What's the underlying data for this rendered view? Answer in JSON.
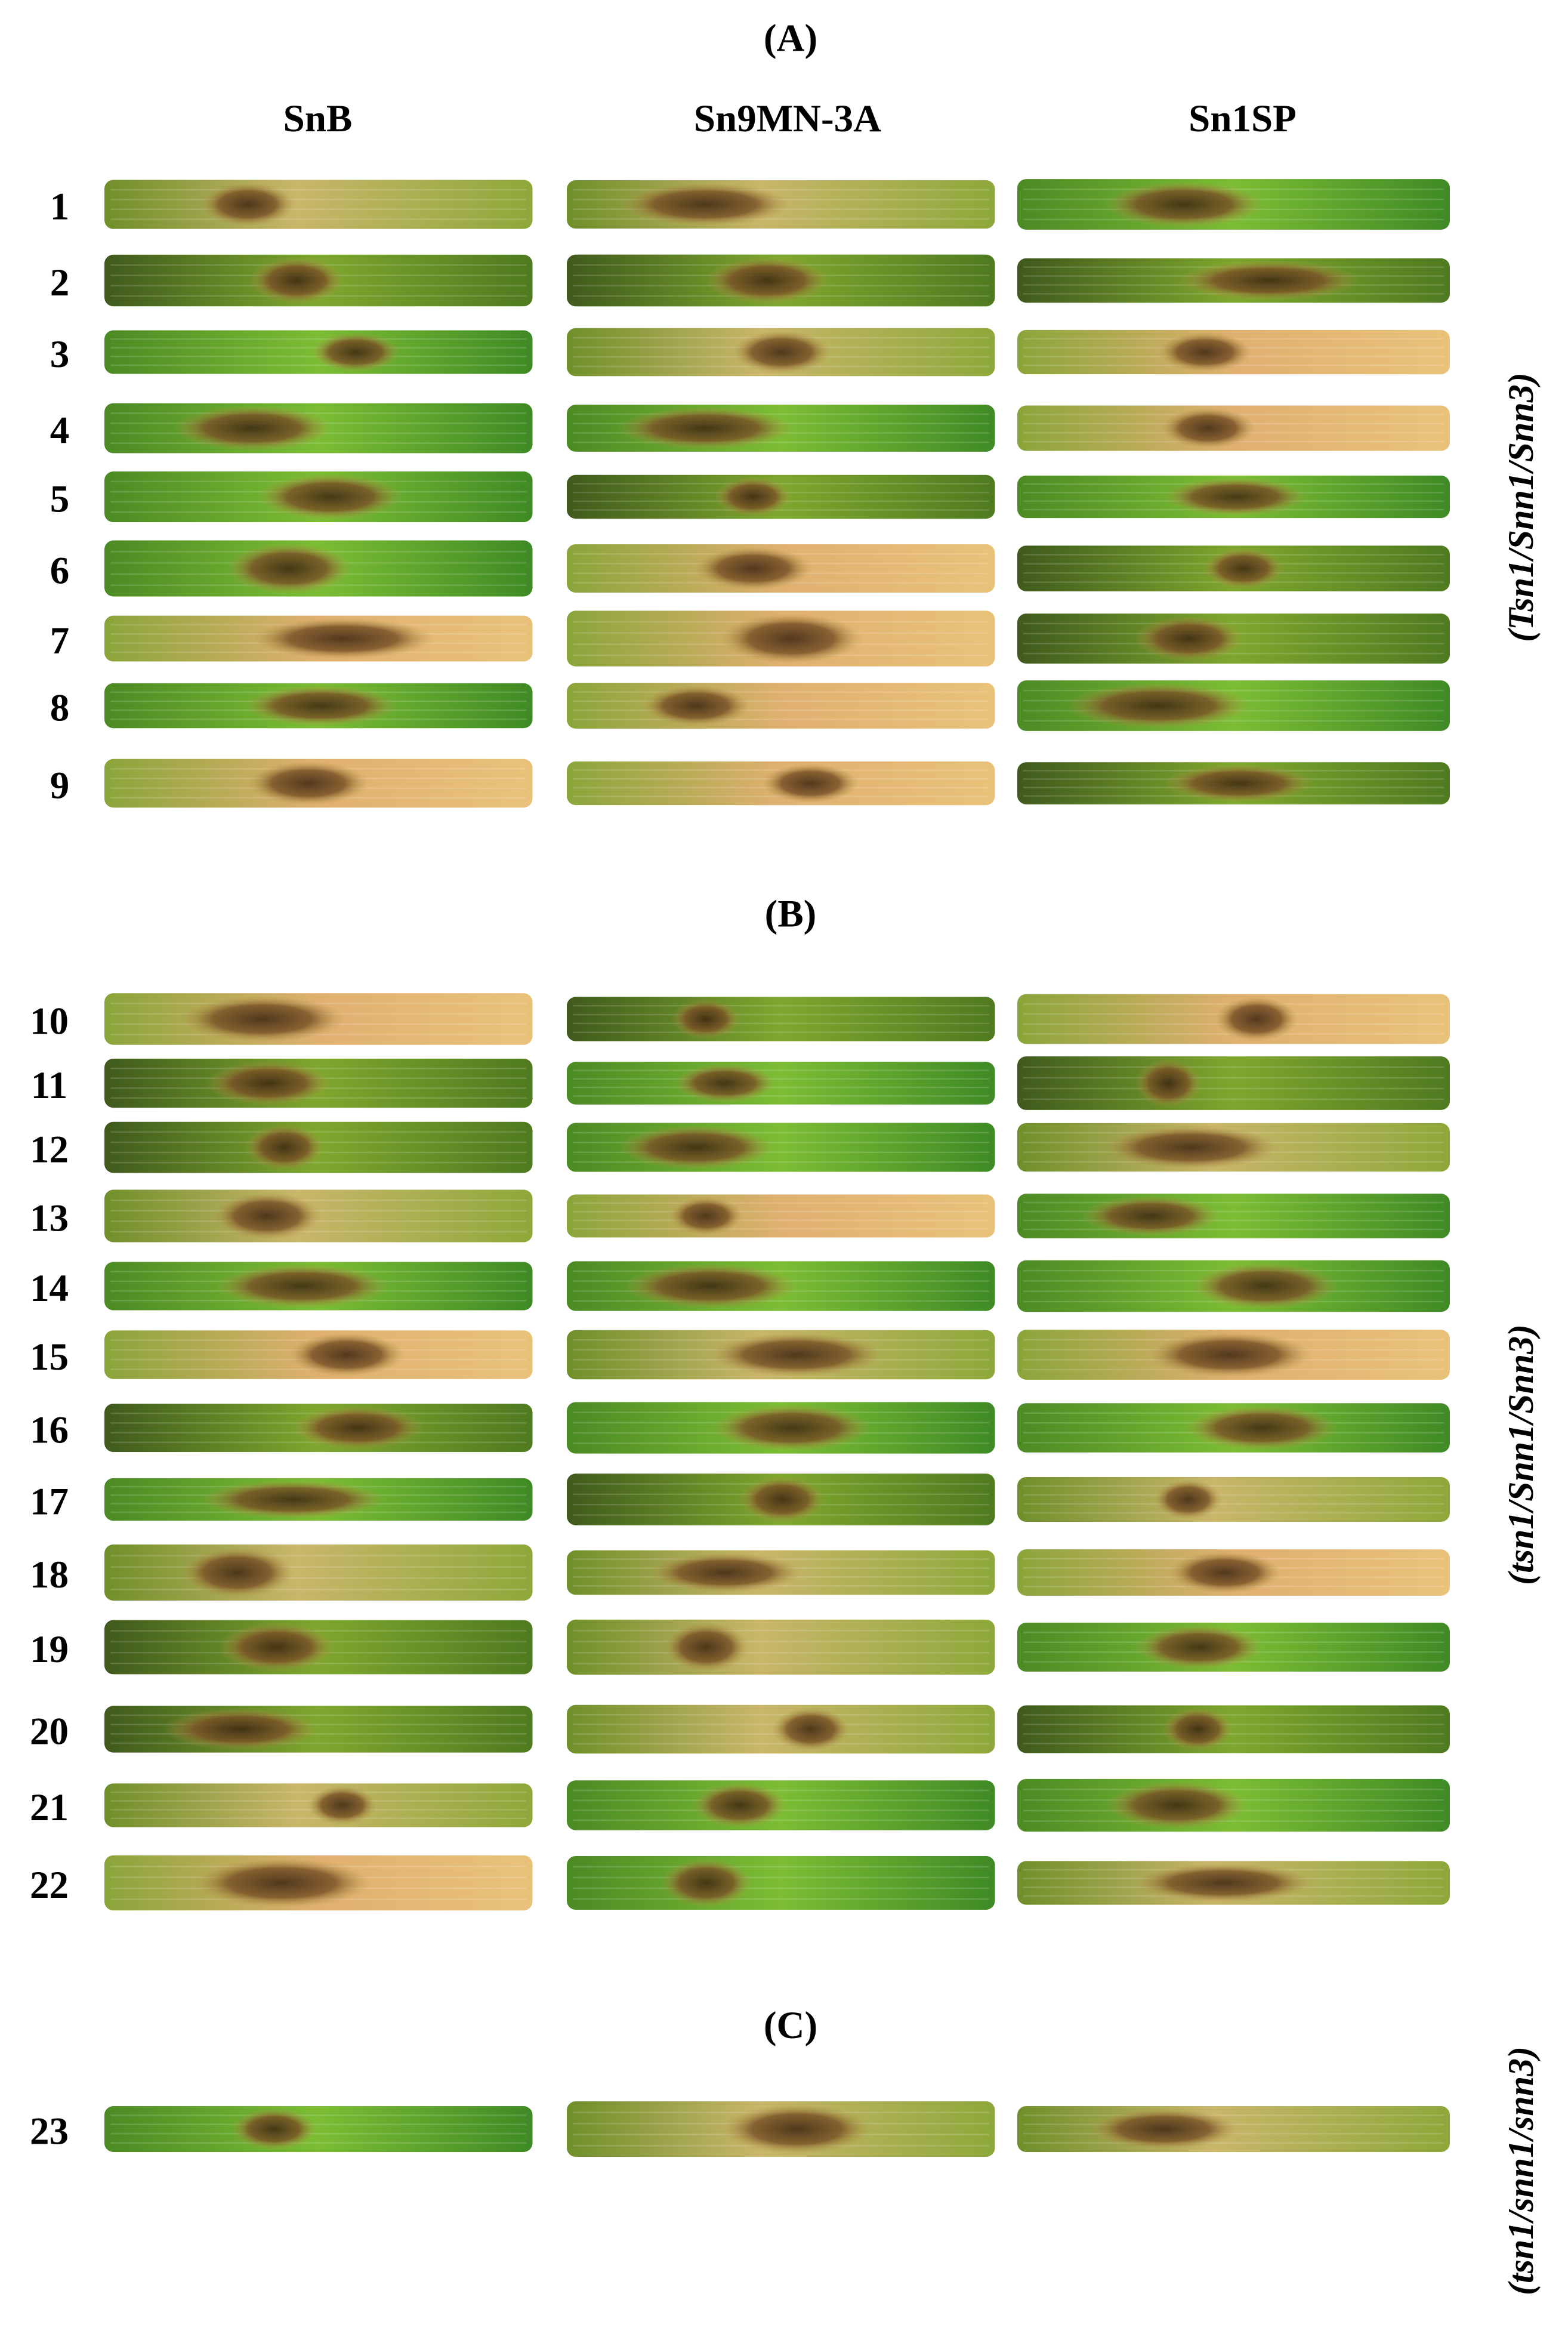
{
  "column_headers": [
    "SnB",
    "Sn9MN-3A",
    "Sn1SP"
  ],
  "panels": [
    {
      "label": "(A)",
      "genotype": "(Tsn1/Snn1/Snn3)",
      "rows": [
        1,
        2,
        3,
        4,
        5,
        6,
        7,
        8,
        9
      ]
    },
    {
      "label": "(B)",
      "genotype": "(tsn1/Snn1/Snn3)",
      "rows": [
        10,
        11,
        12,
        13,
        14,
        15,
        16,
        17,
        18,
        19,
        20,
        21,
        22
      ]
    },
    {
      "label": "(C)",
      "genotype": "(tsn1/snn1/snn3)",
      "rows": [
        23
      ]
    }
  ]
}
